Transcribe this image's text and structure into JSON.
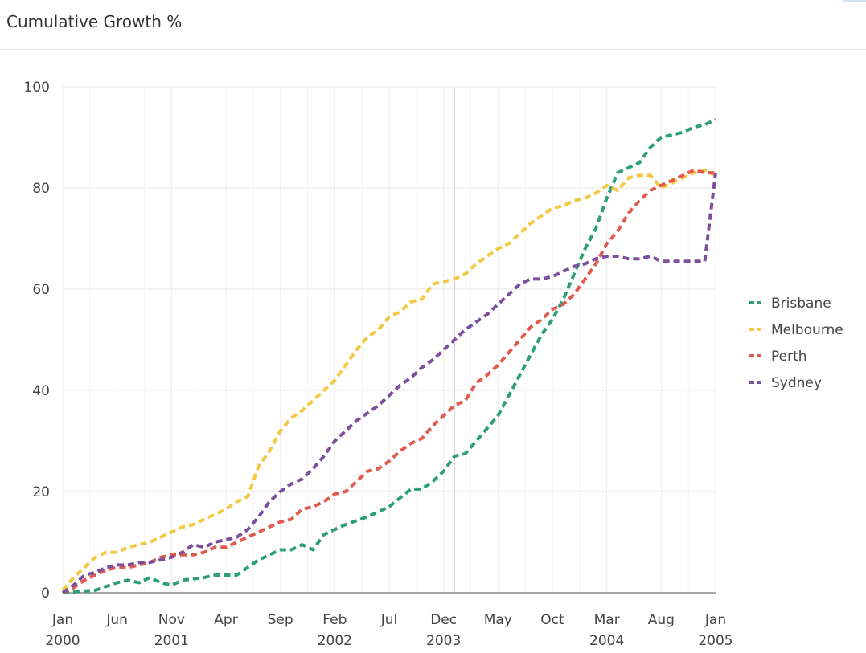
{
  "panel": {
    "title": "Cumulative Growth %"
  },
  "chart_data": {
    "type": "line",
    "title": "Cumulative Growth %",
    "xlabel": "",
    "ylabel": "",
    "ylim": [
      0,
      100
    ],
    "xlim_months": [
      0,
      60
    ],
    "y_ticks": [
      0,
      20,
      40,
      60,
      80,
      100
    ],
    "x_ticks": [
      {
        "month": 0,
        "label": "Jan",
        "year": "2000"
      },
      {
        "month": 5,
        "label": "Jun",
        "year": ""
      },
      {
        "month": 10,
        "label": "Nov",
        "year": "2001"
      },
      {
        "month": 15,
        "label": "Apr",
        "year": ""
      },
      {
        "month": 20,
        "label": "Sep",
        "year": ""
      },
      {
        "month": 25,
        "label": "Feb",
        "year": "2002"
      },
      {
        "month": 30,
        "label": "Jul",
        "year": ""
      },
      {
        "month": 35,
        "label": "Dec",
        "year": "2003"
      },
      {
        "month": 40,
        "label": "May",
        "year": ""
      },
      {
        "month": 45,
        "label": "Oct",
        "year": ""
      },
      {
        "month": 50,
        "label": "Mar",
        "year": "2004"
      },
      {
        "month": 55,
        "label": "Aug",
        "year": ""
      },
      {
        "month": 60,
        "label": "Jan",
        "year": "2005"
      }
    ],
    "reference_line_month": 36,
    "grid": true,
    "legend_position": "right",
    "line_style": "dashed",
    "series": [
      {
        "name": "Brisbane",
        "color": "#2e9e7a",
        "values": [
          [
            0,
            0
          ],
          [
            3,
            0.5
          ],
          [
            5,
            2
          ],
          [
            6,
            2.5
          ],
          [
            7,
            2
          ],
          [
            8,
            3
          ],
          [
            9,
            2
          ],
          [
            10,
            1.5
          ],
          [
            11,
            2.5
          ],
          [
            13,
            3
          ],
          [
            14,
            3.5
          ],
          [
            15,
            3.5
          ],
          [
            16,
            3.5
          ],
          [
            18,
            6.5
          ],
          [
            20,
            8.5
          ],
          [
            21,
            8.5
          ],
          [
            22,
            9.5
          ],
          [
            23,
            8.5
          ],
          [
            24,
            11.5
          ],
          [
            26,
            13.5
          ],
          [
            28,
            15
          ],
          [
            30,
            17
          ],
          [
            32,
            20.5
          ],
          [
            33,
            20.5
          ],
          [
            34,
            22
          ],
          [
            35,
            24
          ],
          [
            36,
            27
          ],
          [
            37,
            27.5
          ],
          [
            38,
            30
          ],
          [
            40,
            35
          ],
          [
            42,
            43
          ],
          [
            43,
            47
          ],
          [
            44,
            51
          ],
          [
            45,
            54
          ],
          [
            46,
            58
          ],
          [
            47,
            63
          ],
          [
            48,
            68
          ],
          [
            49,
            72
          ],
          [
            50,
            78
          ],
          [
            51,
            83
          ],
          [
            52,
            84
          ],
          [
            53,
            85
          ],
          [
            54,
            88
          ],
          [
            55,
            90
          ],
          [
            56,
            90.5
          ],
          [
            57,
            91
          ],
          [
            58,
            92
          ],
          [
            59,
            92.5
          ],
          [
            60,
            93.5
          ]
        ]
      },
      {
        "name": "Melbourne",
        "color": "#f5c842",
        "values": [
          [
            0,
            0.5
          ],
          [
            1,
            3
          ],
          [
            2,
            5
          ],
          [
            3,
            7
          ],
          [
            4,
            8
          ],
          [
            5,
            8
          ],
          [
            6,
            9
          ],
          [
            7,
            9.5
          ],
          [
            8,
            10
          ],
          [
            9,
            11
          ],
          [
            10,
            12
          ],
          [
            11,
            13
          ],
          [
            12,
            13.5
          ],
          [
            13,
            14.5
          ],
          [
            14,
            15.5
          ],
          [
            15,
            16.5
          ],
          [
            16,
            18
          ],
          [
            17,
            19
          ],
          [
            18,
            25
          ],
          [
            19,
            28
          ],
          [
            20,
            32
          ],
          [
            21,
            34.5
          ],
          [
            22,
            36
          ],
          [
            23,
            38
          ],
          [
            24,
            40
          ],
          [
            25,
            42
          ],
          [
            26,
            45
          ],
          [
            27,
            48
          ],
          [
            28,
            50.5
          ],
          [
            29,
            52
          ],
          [
            30,
            54.5
          ],
          [
            31,
            55.5
          ],
          [
            32,
            57.5
          ],
          [
            33,
            58
          ],
          [
            34,
            61
          ],
          [
            35,
            61.5
          ],
          [
            36,
            62
          ],
          [
            37,
            63
          ],
          [
            38,
            65
          ],
          [
            39,
            66.5
          ],
          [
            40,
            68
          ],
          [
            41,
            69
          ],
          [
            42,
            71
          ],
          [
            43,
            73
          ],
          [
            44,
            74.5
          ],
          [
            45,
            76
          ],
          [
            46,
            76.5
          ],
          [
            47,
            77.5
          ],
          [
            48,
            78
          ],
          [
            49,
            79
          ],
          [
            50,
            80.5
          ],
          [
            51,
            79.5
          ],
          [
            52,
            82
          ],
          [
            53,
            82.5
          ],
          [
            54,
            82.5
          ],
          [
            55,
            80
          ],
          [
            56,
            81
          ],
          [
            57,
            82
          ],
          [
            58,
            83
          ],
          [
            59,
            83.5
          ],
          [
            60,
            82.5
          ]
        ]
      },
      {
        "name": "Perth",
        "color": "#e05a4e",
        "values": [
          [
            0,
            0
          ],
          [
            1,
            1
          ],
          [
            2,
            2.5
          ],
          [
            3,
            3.5
          ],
          [
            4,
            4.5
          ],
          [
            5,
            5
          ],
          [
            6,
            5
          ],
          [
            7,
            5.5
          ],
          [
            8,
            6
          ],
          [
            9,
            7
          ],
          [
            10,
            7.5
          ],
          [
            11,
            7.5
          ],
          [
            12,
            7.5
          ],
          [
            13,
            8
          ],
          [
            14,
            9
          ],
          [
            15,
            9
          ],
          [
            16,
            10
          ],
          [
            17,
            11
          ],
          [
            18,
            12
          ],
          [
            19,
            13
          ],
          [
            20,
            14
          ],
          [
            21,
            14.5
          ],
          [
            22,
            16.5
          ],
          [
            23,
            17
          ],
          [
            24,
            18
          ],
          [
            25,
            19.5
          ],
          [
            26,
            20
          ],
          [
            27,
            22
          ],
          [
            28,
            24
          ],
          [
            29,
            24.5
          ],
          [
            30,
            26
          ],
          [
            31,
            28
          ],
          [
            32,
            29.5
          ],
          [
            33,
            30.5
          ],
          [
            34,
            33
          ],
          [
            35,
            35
          ],
          [
            36,
            37
          ],
          [
            37,
            38
          ],
          [
            38,
            41.5
          ],
          [
            39,
            43
          ],
          [
            40,
            45
          ],
          [
            41,
            47.5
          ],
          [
            42,
            50
          ],
          [
            43,
            52.5
          ],
          [
            44,
            54
          ],
          [
            45,
            56
          ],
          [
            46,
            57
          ],
          [
            47,
            59
          ],
          [
            48,
            62
          ],
          [
            49,
            65
          ],
          [
            50,
            69
          ],
          [
            51,
            71.5
          ],
          [
            52,
            75
          ],
          [
            53,
            77.5
          ],
          [
            54,
            79.5
          ],
          [
            55,
            80.5
          ],
          [
            56,
            81.5
          ],
          [
            57,
            82.5
          ],
          [
            58,
            83.5
          ],
          [
            59,
            83
          ],
          [
            60,
            83
          ]
        ]
      },
      {
        "name": "Sydney",
        "color": "#7b4e9e",
        "values": [
          [
            0,
            0
          ],
          [
            1,
            1.5
          ],
          [
            2,
            3.5
          ],
          [
            3,
            4
          ],
          [
            4,
            5
          ],
          [
            5,
            5.5
          ],
          [
            6,
            5.5
          ],
          [
            7,
            6
          ],
          [
            8,
            6
          ],
          [
            9,
            6.5
          ],
          [
            10,
            7
          ],
          [
            11,
            8
          ],
          [
            12,
            9.5
          ],
          [
            13,
            9
          ],
          [
            14,
            10
          ],
          [
            15,
            10.5
          ],
          [
            16,
            11
          ],
          [
            17,
            12.5
          ],
          [
            18,
            15
          ],
          [
            19,
            18
          ],
          [
            20,
            20
          ],
          [
            21,
            21.5
          ],
          [
            22,
            22.5
          ],
          [
            23,
            24.5
          ],
          [
            24,
            27
          ],
          [
            25,
            30
          ],
          [
            26,
            32
          ],
          [
            27,
            34
          ],
          [
            28,
            35.5
          ],
          [
            29,
            37
          ],
          [
            30,
            39
          ],
          [
            31,
            41
          ],
          [
            32,
            42.5
          ],
          [
            33,
            44.5
          ],
          [
            34,
            46
          ],
          [
            35,
            48
          ],
          [
            36,
            50
          ],
          [
            37,
            52
          ],
          [
            38,
            53.5
          ],
          [
            39,
            55
          ],
          [
            40,
            57
          ],
          [
            41,
            59
          ],
          [
            42,
            61
          ],
          [
            43,
            62
          ],
          [
            44,
            62
          ],
          [
            45,
            62.5
          ],
          [
            46,
            63.5
          ],
          [
            47,
            64.5
          ],
          [
            48,
            65
          ],
          [
            49,
            66
          ],
          [
            50,
            66.5
          ],
          [
            51,
            66.5
          ],
          [
            52,
            66
          ],
          [
            53,
            66
          ],
          [
            54,
            66.5
          ],
          [
            55,
            65.5
          ],
          [
            56,
            65.5
          ],
          [
            57,
            65.5
          ],
          [
            58,
            65.5
          ],
          [
            59,
            65.5
          ],
          [
            60,
            83
          ]
        ]
      }
    ]
  }
}
